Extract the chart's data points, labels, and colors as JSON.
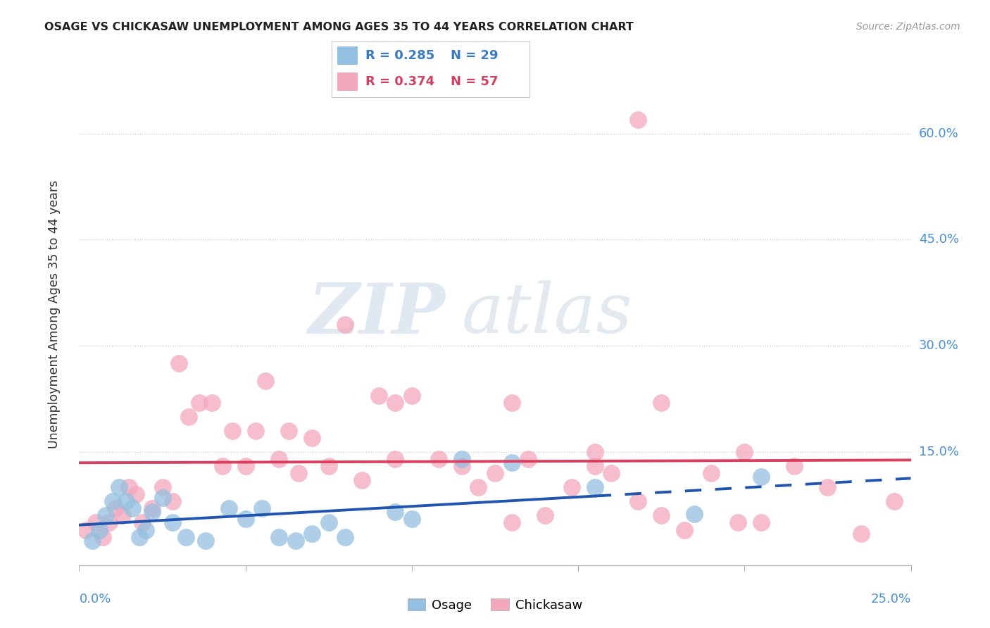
{
  "title": "OSAGE VS CHICKASAW UNEMPLOYMENT AMONG AGES 35 TO 44 YEARS CORRELATION CHART",
  "source": "Source: ZipAtlas.com",
  "ylabel": "Unemployment Among Ages 35 to 44 years",
  "xlim": [
    0.0,
    0.25
  ],
  "ylim": [
    -0.01,
    0.7
  ],
  "ytick_vals": [
    0.0,
    0.15,
    0.3,
    0.45,
    0.6
  ],
  "ytick_labels": [
    "",
    "15.0%",
    "30.0%",
    "45.0%",
    "60.0%"
  ],
  "xtick_positions": [
    0.0,
    0.05,
    0.1,
    0.15,
    0.2,
    0.25
  ],
  "legend_osage_R": "0.285",
  "legend_osage_N": "29",
  "legend_chickasaw_R": "0.374",
  "legend_chickasaw_N": "57",
  "osage_color": "#93bfe0",
  "chickasaw_color": "#f4a8bc",
  "trend_osage_color": "#2255b0",
  "trend_chickasaw_color": "#d94060",
  "osage_x": [
    0.004,
    0.006,
    0.008,
    0.01,
    0.012,
    0.014,
    0.016,
    0.018,
    0.02,
    0.022,
    0.025,
    0.028,
    0.032,
    0.038,
    0.045,
    0.05,
    0.055,
    0.06,
    0.065,
    0.07,
    0.075,
    0.08,
    0.095,
    0.1,
    0.115,
    0.13,
    0.155,
    0.185,
    0.205
  ],
  "osage_y": [
    0.025,
    0.04,
    0.06,
    0.08,
    0.1,
    0.08,
    0.07,
    0.03,
    0.04,
    0.065,
    0.085,
    0.05,
    0.03,
    0.025,
    0.07,
    0.055,
    0.07,
    0.03,
    0.025,
    0.035,
    0.05,
    0.03,
    0.065,
    0.055,
    0.14,
    0.135,
    0.1,
    0.062,
    0.115
  ],
  "chickasaw_x": [
    0.002,
    0.005,
    0.007,
    0.009,
    0.011,
    0.013,
    0.015,
    0.017,
    0.019,
    0.022,
    0.025,
    0.028,
    0.03,
    0.033,
    0.036,
    0.04,
    0.043,
    0.046,
    0.05,
    0.053,
    0.056,
    0.06,
    0.063,
    0.066,
    0.07,
    0.075,
    0.08,
    0.085,
    0.09,
    0.095,
    0.1,
    0.108,
    0.115,
    0.12,
    0.125,
    0.13,
    0.135,
    0.14,
    0.148,
    0.155,
    0.16,
    0.168,
    0.175,
    0.182,
    0.19,
    0.198,
    0.205,
    0.215,
    0.225,
    0.235,
    0.168,
    0.2,
    0.245,
    0.155,
    0.175,
    0.095,
    0.13
  ],
  "chickasaw_y": [
    0.04,
    0.05,
    0.03,
    0.05,
    0.07,
    0.06,
    0.1,
    0.09,
    0.05,
    0.07,
    0.1,
    0.08,
    0.275,
    0.2,
    0.22,
    0.22,
    0.13,
    0.18,
    0.13,
    0.18,
    0.25,
    0.14,
    0.18,
    0.12,
    0.17,
    0.13,
    0.33,
    0.11,
    0.23,
    0.14,
    0.23,
    0.14,
    0.13,
    0.1,
    0.12,
    0.05,
    0.14,
    0.06,
    0.1,
    0.15,
    0.12,
    0.08,
    0.06,
    0.04,
    0.12,
    0.05,
    0.05,
    0.13,
    0.1,
    0.035,
    0.62,
    0.15,
    0.08,
    0.13,
    0.22,
    0.22,
    0.22
  ],
  "background_color": "#ffffff"
}
